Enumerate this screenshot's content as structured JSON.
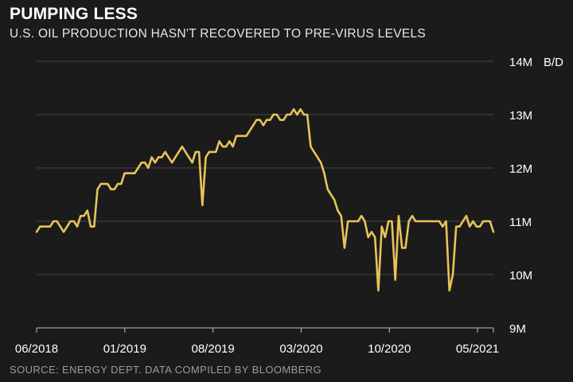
{
  "header": {
    "title": "PUMPING LESS",
    "subtitle": "U.S. OIL PRODUCTION HASN'T RECOVERED TO PRE-VIRUS LEVELS"
  },
  "footer": {
    "source": "SOURCE: ENERGY DEPT. DATA COMPILED BY BLOOMBERG"
  },
  "colors": {
    "background": "#1b1b1b",
    "line": "#e8c35a",
    "grid": "#444444",
    "axis": "#bdbdbd"
  },
  "chart_data": {
    "type": "line",
    "title": "PUMPING LESS",
    "subtitle": "U.S. OIL PRODUCTION HASN'T RECOVERED TO PRE-VIRUS LEVELS",
    "xlabel": "",
    "ylabel": "",
    "y_unit_label": "B/D",
    "ylim": [
      9,
      14
    ],
    "grid": true,
    "y_axis_side": "right",
    "y_ticks": [
      {
        "value": 14,
        "label": "14M"
      },
      {
        "value": 13,
        "label": "13M"
      },
      {
        "value": 12,
        "label": "12M"
      },
      {
        "value": 11,
        "label": "11M"
      },
      {
        "value": 10,
        "label": "10M"
      },
      {
        "value": 9,
        "label": "9M"
      }
    ],
    "x_ticks": [
      "06/2018",
      "01/2019",
      "08/2019",
      "03/2020",
      "10/2020",
      "05/2021"
    ],
    "x_range": [
      "06/2018",
      "06/2021"
    ],
    "series": [
      {
        "values": [
          10.8,
          10.9,
          10.9,
          10.9,
          10.9,
          11.0,
          11.0,
          10.9,
          10.8,
          10.9,
          11.0,
          11.0,
          10.9,
          11.1,
          11.1,
          11.2,
          10.9,
          10.9,
          11.6,
          11.7,
          11.7,
          11.7,
          11.6,
          11.6,
          11.7,
          11.7,
          11.9,
          11.9,
          11.9,
          11.9,
          12.0,
          12.1,
          12.1,
          12.0,
          12.2,
          12.1,
          12.2,
          12.2,
          12.3,
          12.2,
          12.1,
          12.2,
          12.3,
          12.4,
          12.3,
          12.2,
          12.1,
          12.3,
          12.3,
          11.3,
          12.2,
          12.3,
          12.3,
          12.3,
          12.5,
          12.4,
          12.4,
          12.5,
          12.4,
          12.6,
          12.6,
          12.6,
          12.6,
          12.7,
          12.8,
          12.9,
          12.9,
          12.8,
          12.9,
          12.9,
          13.0,
          13.0,
          12.9,
          12.9,
          13.0,
          13.0,
          13.1,
          13.0,
          13.1,
          13.0,
          13.0,
          12.4,
          12.3,
          12.2,
          12.1,
          11.9,
          11.6,
          11.5,
          11.4,
          11.2,
          11.1,
          10.5,
          11.0,
          11.0,
          11.0,
          11.0,
          11.1,
          11.0,
          10.7,
          10.8,
          10.7,
          9.7,
          10.9,
          10.7,
          11.0,
          11.0,
          9.9,
          11.1,
          10.5,
          10.5,
          11.0,
          11.1,
          11.0,
          11.0,
          11.0,
          11.0,
          11.0,
          11.0,
          11.0,
          11.0,
          10.9,
          11.0,
          9.7,
          10.0,
          10.9,
          10.9,
          11.0,
          11.1,
          10.9,
          11.0,
          10.9,
          10.9,
          11.0,
          11.0,
          11.0,
          10.8
        ]
      }
    ]
  }
}
